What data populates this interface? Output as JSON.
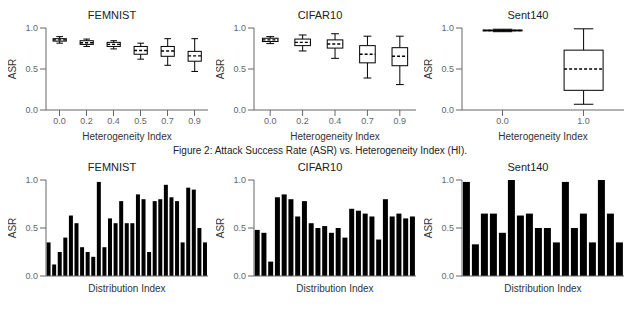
{
  "title": "Figure 2: Attack Success Rate (ASR) vs. Heterogeneity Index (HI).",
  "chart_data": [
    {
      "type": "box",
      "title": "FEMNIST",
      "xlabel": "Heterogeneity Index",
      "ylabel": "ASR",
      "categories": [
        "0.0",
        "0.2",
        "0.4",
        "0.5",
        "0.7",
        "0.9"
      ],
      "boxes": [
        {
          "med": 0.855,
          "q1": 0.84,
          "q3": 0.87,
          "whislo": 0.815,
          "whishi": 0.895
        },
        {
          "med": 0.82,
          "q1": 0.8,
          "q3": 0.845,
          "whislo": 0.775,
          "whishi": 0.865
        },
        {
          "med": 0.8,
          "q1": 0.775,
          "q3": 0.825,
          "whislo": 0.745,
          "whishi": 0.845
        },
        {
          "med": 0.725,
          "q1": 0.68,
          "q3": 0.775,
          "whislo": 0.62,
          "whishi": 0.815
        },
        {
          "med": 0.72,
          "q1": 0.655,
          "q3": 0.775,
          "whislo": 0.545,
          "whishi": 0.87
        },
        {
          "med": 0.66,
          "q1": 0.595,
          "q3": 0.715,
          "whislo": 0.47,
          "whishi": 0.87
        }
      ],
      "color": "black",
      "ylim": [
        0.0,
        1.0
      ],
      "yticks": [
        {
          "value": 0,
          "label": "0.0"
        },
        0.5,
        {
          "value": 1,
          "label": "1.0"
        }
      ]
    },
    {
      "type": "box",
      "title": "CIFAR10",
      "xlabel": "Heterogeneity Index",
      "ylabel": "ASR",
      "categories": [
        "0.0",
        "0.2",
        "0.4",
        "0.7",
        "0.9"
      ],
      "boxes": [
        {
          "med": 0.855,
          "q1": 0.835,
          "q3": 0.875,
          "whislo": 0.81,
          "whishi": 0.895
        },
        {
          "med": 0.825,
          "q1": 0.785,
          "q3": 0.865,
          "whislo": 0.72,
          "whishi": 0.915
        },
        {
          "med": 0.805,
          "q1": 0.755,
          "q3": 0.855,
          "whislo": 0.63,
          "whishi": 0.93
        },
        {
          "med": 0.68,
          "q1": 0.575,
          "q3": 0.785,
          "whislo": 0.39,
          "whishi": 0.9
        },
        {
          "med": 0.655,
          "q1": 0.54,
          "q3": 0.76,
          "whislo": 0.31,
          "whishi": 0.9
        }
      ],
      "color": "black",
      "ylim": [
        0.0,
        1.0
      ],
      "yticks": [
        {
          "value": 0,
          "label": "0.0"
        },
        0.5,
        {
          "value": 1,
          "label": "1.0"
        }
      ]
    },
    {
      "type": "box",
      "title": "Sent140",
      "xlabel": "Heterogeneity Index",
      "ylabel": "ASR",
      "categories": [
        "0.0",
        "1.0"
      ],
      "boxes": [
        {
          "med": 0.97,
          "q1": 0.965,
          "q3": 0.975,
          "whislo": 0.955,
          "whishi": 0.985
        },
        {
          "med": 0.5,
          "q1": 0.24,
          "q3": 0.73,
          "whislo": 0.07,
          "whishi": 0.99
        }
      ],
      "color": "black",
      "ylim": [
        0.0,
        1.0
      ],
      "yticks": [
        {
          "value": 0,
          "label": "0.0"
        },
        0.5,
        {
          "value": 1,
          "label": "1.0"
        }
      ]
    },
    {
      "type": "bar",
      "title": "FEMNIST",
      "xlabel": "Distribution Index",
      "ylabel": "ASR",
      "values": [
        0.35,
        0.12,
        0.25,
        0.4,
        0.63,
        0.55,
        0.3,
        0.25,
        0.2,
        0.98,
        0.3,
        0.6,
        0.55,
        0.78,
        0.55,
        0.55,
        0.85,
        0.8,
        0.25,
        0.78,
        0.8,
        0.95,
        0.82,
        0.78,
        0.35,
        0.92,
        0.9,
        0.5,
        0.35
      ],
      "color": "black",
      "ylim": [
        0.0,
        1.0
      ],
      "yticks": [
        {
          "value": 0,
          "label": "0.0"
        },
        0.5,
        {
          "value": 1,
          "label": "1.0"
        }
      ],
      "tick_labels": "y"
    },
    {
      "type": "bar",
      "title": "CIFAR10",
      "xlabel": "Distribution Index",
      "ylabel": "ASR",
      "values": [
        0.48,
        0.45,
        0.15,
        0.82,
        0.85,
        0.8,
        0.62,
        0.78,
        0.55,
        0.5,
        0.52,
        0.45,
        0.5,
        0.4,
        0.7,
        0.68,
        0.65,
        0.62,
        0.38,
        0.8,
        0.62,
        0.65,
        0.6,
        0.62
      ],
      "color": "black",
      "ylim": [
        0.0,
        1.0
      ],
      "yticks": [
        {
          "value": 0,
          "label": "0.0"
        },
        0.5,
        {
          "value": 1,
          "label": "1.0"
        }
      ],
      "tick_labels": "y"
    },
    {
      "type": "bar",
      "title": "Sent140",
      "xlabel": "Distribution Index",
      "ylabel": "ASR",
      "values": [
        0.98,
        0.33,
        0.65,
        0.65,
        0.45,
        1.0,
        0.63,
        0.65,
        0.5,
        0.5,
        0.35,
        0.98,
        0.5,
        0.65,
        0.35,
        1.0,
        0.65,
        0.35
      ],
      "color": "black",
      "ylim": [
        0.0,
        1.0
      ],
      "yticks": [
        {
          "value": 0,
          "label": "0.0"
        },
        0.5,
        {
          "value": 1,
          "label": "1.0"
        }
      ],
      "tick_labels": "y"
    }
  ]
}
